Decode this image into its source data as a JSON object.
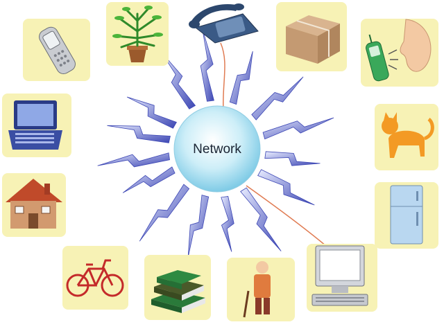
{
  "diagram": {
    "hub": {
      "label": "Network",
      "color": "#aee3f2"
    },
    "tile_color": "#f7f2b5",
    "bolt_color": "#3c46b4",
    "cable_color": "#e07b52",
    "devices": [
      {
        "name": "mobile-phone",
        "icon": "flip-phone-icon"
      },
      {
        "name": "potted-plant",
        "icon": "plant-icon"
      },
      {
        "name": "desk-telephone",
        "icon": "telephone-icon"
      },
      {
        "name": "parcel",
        "icon": "package-icon"
      },
      {
        "name": "voice-phone",
        "icon": "cell-phone-voice-icon"
      },
      {
        "name": "laptop",
        "icon": "laptop-icon"
      },
      {
        "name": "cat",
        "icon": "cat-icon"
      },
      {
        "name": "house",
        "icon": "house-icon"
      },
      {
        "name": "refrigerator",
        "icon": "fridge-icon"
      },
      {
        "name": "bicycle",
        "icon": "bicycle-icon"
      },
      {
        "name": "books",
        "icon": "books-icon"
      },
      {
        "name": "elderly-person",
        "icon": "person-cane-icon"
      },
      {
        "name": "desktop-computer",
        "icon": "desktop-computer-icon"
      }
    ]
  }
}
